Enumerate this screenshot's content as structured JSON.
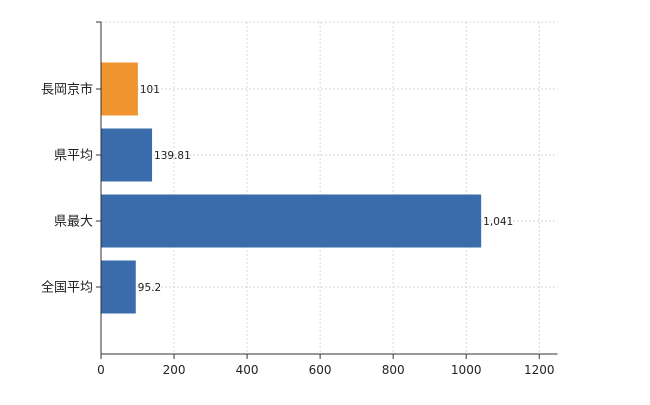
{
  "chart_data": {
    "type": "bar",
    "orientation": "horizontal",
    "categories": [
      "長岡京市",
      "県平均",
      "県最大",
      "全国平均"
    ],
    "values": [
      101,
      139.81,
      1041,
      95.2
    ],
    "data_labels": [
      "101",
      "139.81",
      "1,041",
      "95.2"
    ],
    "bar_colors": [
      "#F0942F",
      "#3A6BAA",
      "#3A6BAA",
      "#3A6BAA"
    ],
    "xlim": [
      0,
      1250
    ],
    "xticks": [
      0,
      200,
      400,
      600,
      800,
      1000,
      1200
    ],
    "xtick_labels": [
      "0",
      "200",
      "400",
      "600",
      "800",
      "1000",
      "1200"
    ],
    "grid": true,
    "legend": "none",
    "title": "",
    "xlabel": "",
    "ylabel": ""
  }
}
